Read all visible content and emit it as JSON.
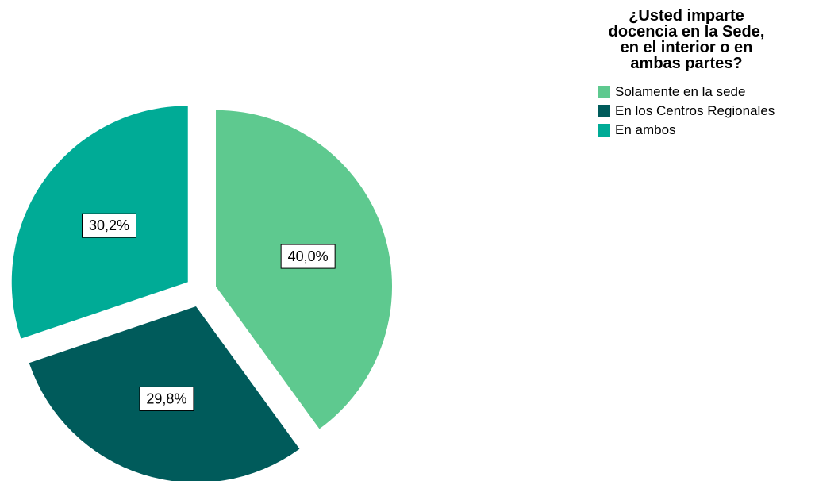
{
  "chart_data": {
    "type": "pie",
    "legend": {
      "title": "¿Usted imparte docencia en la Sede, en el interior o en ambas partes?",
      "title_lines": [
        "¿Usted imparte",
        "docencia en la Sede,",
        "en el interior o en",
        "ambas partes?"
      ],
      "placement": "top-right"
    },
    "slices": [
      {
        "label": "Solamente en la sede",
        "value": 40.0,
        "display": "40,0%",
        "color": "#5ec98f"
      },
      {
        "label": "En los Centros Regionales",
        "value": 29.8,
        "display": "29,8%",
        "color": "#005b5b"
      },
      {
        "label": "En ambos",
        "value": 30.2,
        "display": "30,2%",
        "color": "#00ab96"
      }
    ],
    "exploded": true
  }
}
